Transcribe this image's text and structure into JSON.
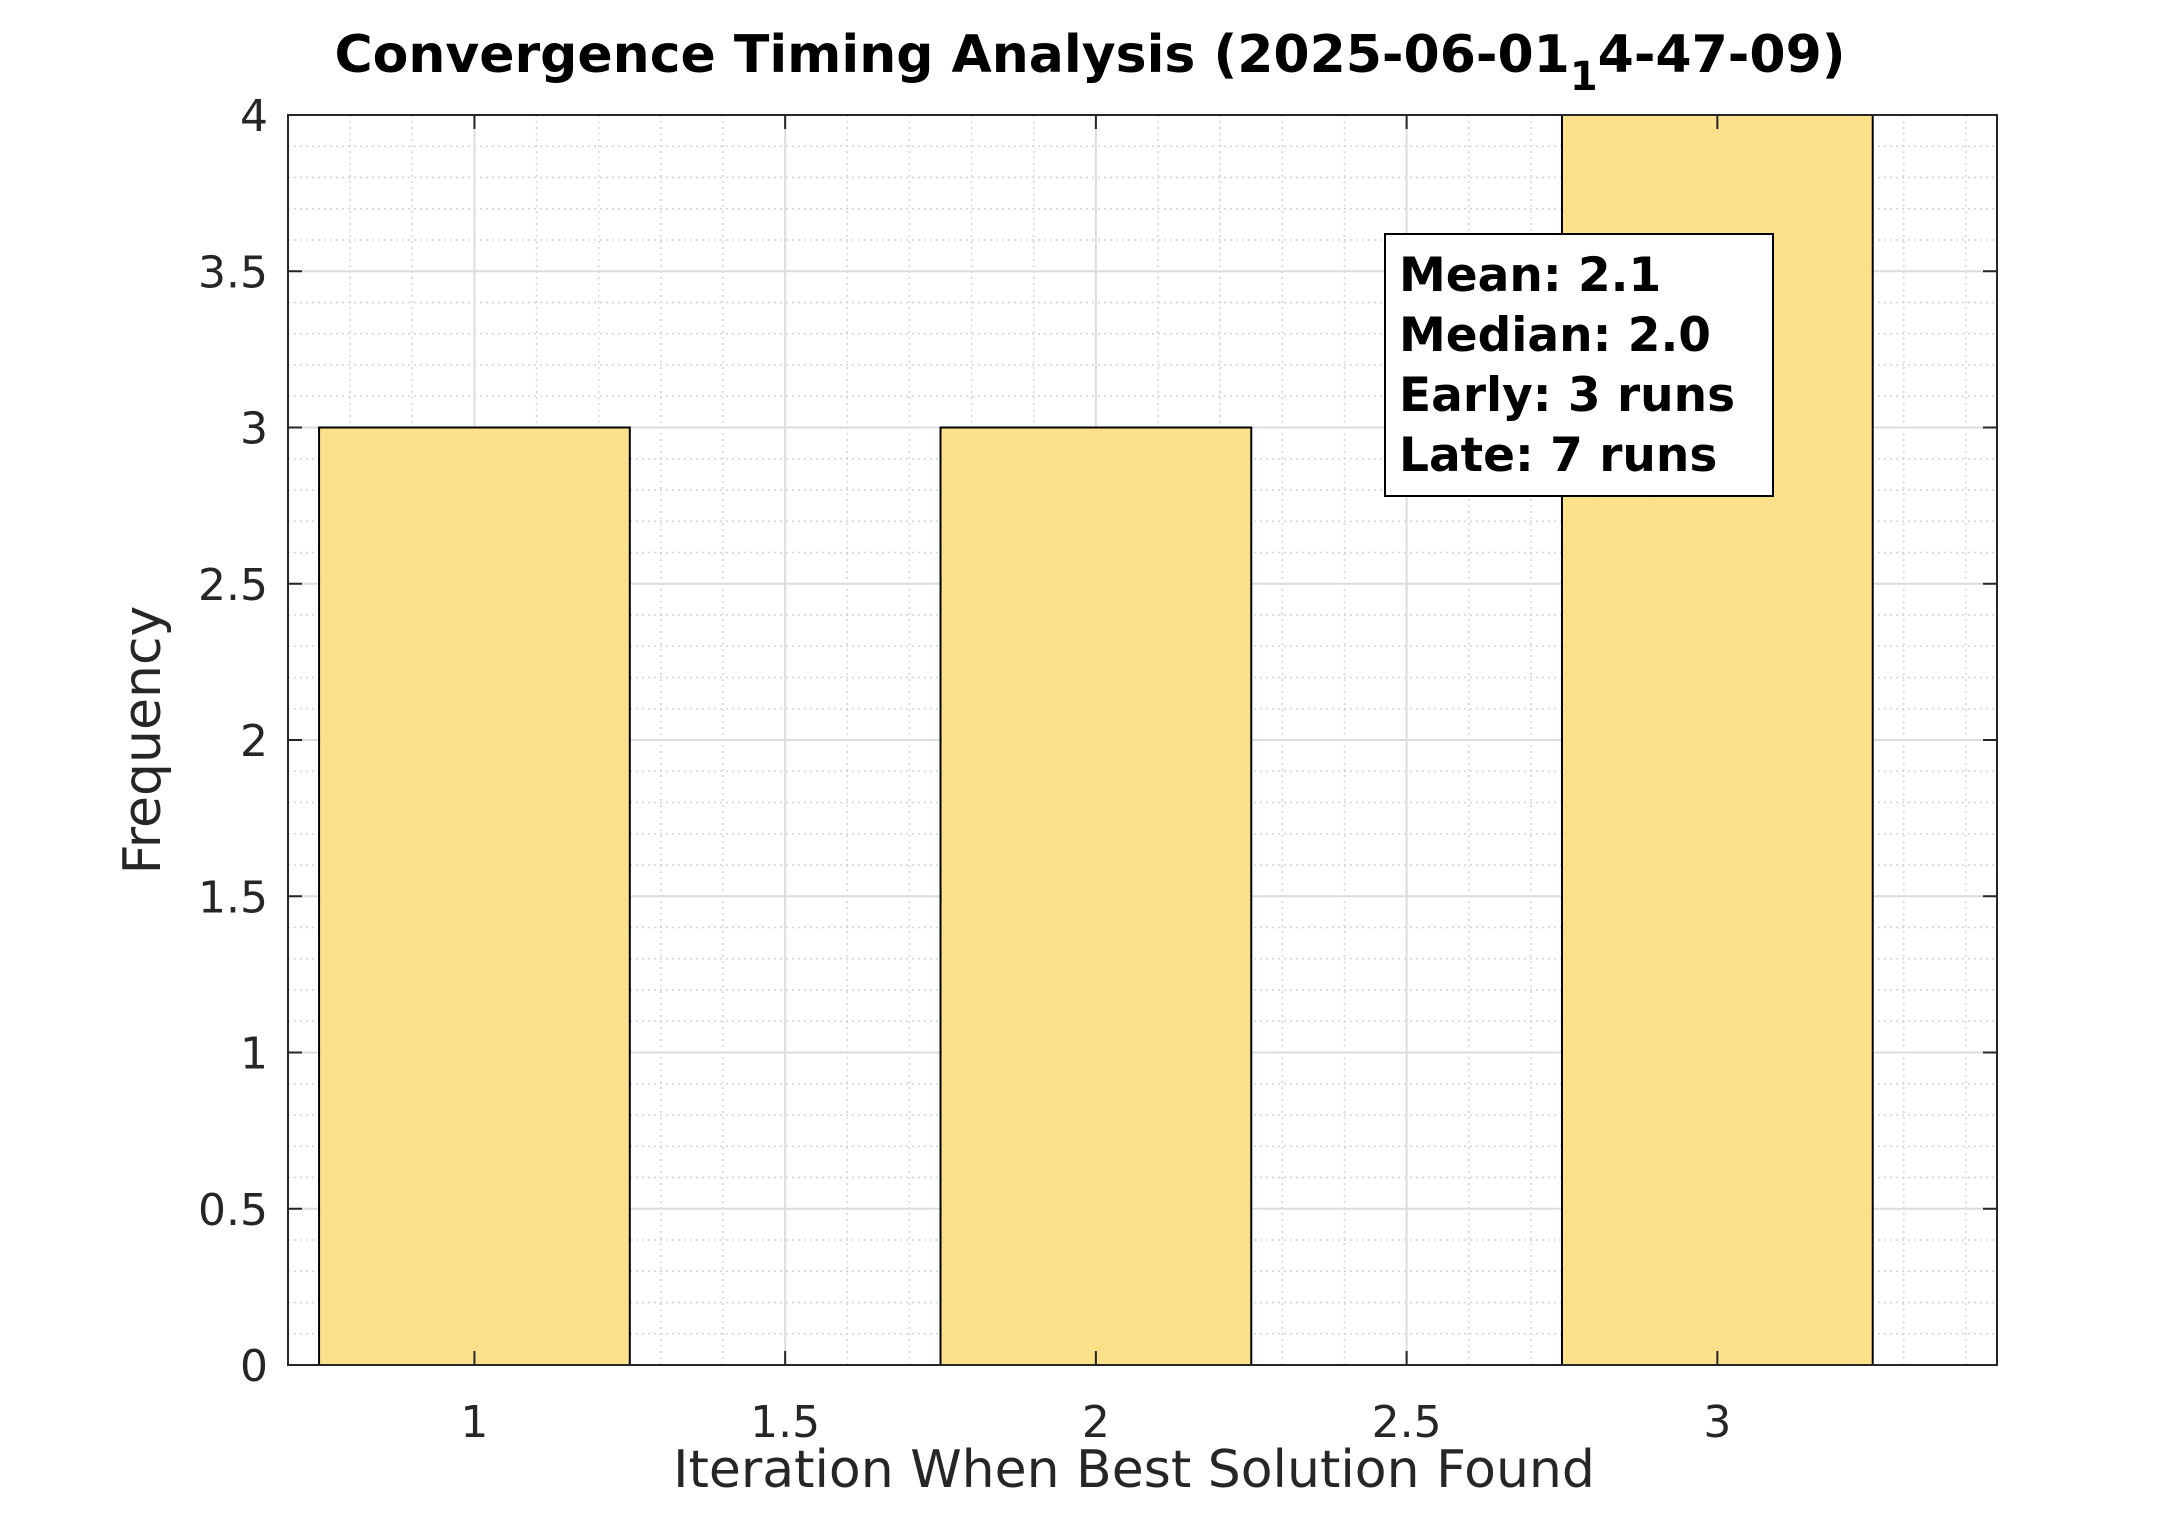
{
  "chart_data": {
    "type": "bar",
    "title_main": "Convergence Timing Analysis (2025-06-01",
    "title_sub": "1",
    "title_tail": "4-47-09)",
    "xlabel": "Iteration When Best Solution Found",
    "ylabel": "Frequency",
    "x": [
      1,
      2,
      3
    ],
    "values": [
      3,
      3,
      4
    ],
    "bar_width": 0.5,
    "xlim": [
      0.7,
      3.45
    ],
    "ylim": [
      0,
      4
    ],
    "xticks": [
      1,
      1.5,
      2,
      2.5,
      3
    ],
    "xtick_labels": [
      "1",
      "1.5",
      "2",
      "2.5",
      "3"
    ],
    "yticks": [
      0,
      0.5,
      1,
      1.5,
      2,
      2.5,
      3,
      3.5,
      4
    ],
    "ytick_labels": [
      "0",
      "0.5",
      "1",
      "1.5",
      "2",
      "2.5",
      "3",
      "3.5",
      "4"
    ],
    "grid": true,
    "minor_grid": true,
    "bar_color": "#FCDE84",
    "stats_box": {
      "lines": [
        "Mean: 2.1",
        "Median: 2.0",
        "Early: 3 runs",
        "Late: 7 runs"
      ],
      "placement": "top-right"
    }
  }
}
